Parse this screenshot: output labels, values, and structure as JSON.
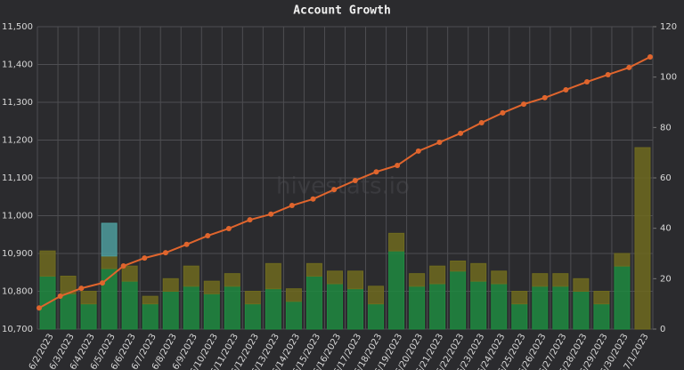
{
  "chart_data": {
    "type": "combo",
    "title": "Account Growth",
    "watermark": "hivestats.io",
    "categories": [
      "6/2/2023",
      "6/3/2023",
      "6/4/2023",
      "6/5/2023",
      "6/6/2023",
      "6/7/2023",
      "6/8/2023",
      "6/9/2023",
      "6/10/2023",
      "6/11/2023",
      "6/12/2023",
      "6/13/2023",
      "6/14/2023",
      "6/15/2023",
      "6/16/2023",
      "6/17/2023",
      "6/18/2023",
      "6/19/2023",
      "6/20/2023",
      "6/21/2023",
      "6/22/2023",
      "6/23/2023",
      "6/24/2023",
      "6/25/2023",
      "6/26/2023",
      "6/27/2023",
      "6/28/2023",
      "6/29/2023",
      "6/30/2023",
      "7/1/2023"
    ],
    "series": [
      {
        "type": "bar",
        "axis": "y2",
        "color": "#1e8a3f",
        "values": [
          21,
          14,
          10,
          24,
          19,
          10,
          15,
          17,
          14,
          17,
          10,
          16,
          11,
          21,
          18,
          16,
          10,
          31,
          17,
          18,
          23,
          19,
          18,
          10,
          17,
          17,
          15,
          10,
          25,
          0
        ]
      },
      {
        "type": "bar",
        "axis": "y2",
        "color": "#6e6a1e",
        "values": [
          10,
          7,
          5,
          5,
          6,
          3,
          5,
          8,
          5,
          5,
          5,
          10,
          5,
          5,
          5,
          7,
          7,
          7,
          5,
          7,
          4,
          7,
          5,
          5,
          5,
          5,
          5,
          5,
          5,
          72
        ]
      },
      {
        "type": "bar",
        "axis": "y2",
        "color": "#4d9c9c",
        "values": [
          0,
          0,
          0,
          13,
          0,
          0,
          0,
          0,
          0,
          0,
          0,
          0,
          0,
          0,
          0,
          0,
          0,
          0,
          0,
          0,
          0,
          0,
          0,
          0,
          0,
          0,
          0,
          0,
          0,
          0
        ]
      },
      {
        "type": "line",
        "axis": "y",
        "color": "#e0652d",
        "values": [
          10756,
          10787,
          10808,
          10822,
          10867,
          10888,
          10902,
          10924,
          10947,
          10966,
          10989,
          11004,
          11027,
          11044,
          11069,
          11093,
          11116,
          11133,
          11171,
          11194,
          11218,
          11246,
          11272,
          11295,
          11312,
          11333,
          11354,
          11373,
          11392,
          11420
        ]
      }
    ],
    "ylim": [
      10700,
      11500
    ],
    "yticks": [
      {
        "value": 10700,
        "label": "10,700"
      },
      {
        "value": 10800,
        "label": "10,800"
      },
      {
        "value": 10900,
        "label": "10,900"
      },
      {
        "value": 11000,
        "label": "11,000"
      },
      {
        "value": 11100,
        "label": "11,100"
      },
      {
        "value": 11200,
        "label": "11,200"
      },
      {
        "value": 11300,
        "label": "11,300"
      },
      {
        "value": 11400,
        "label": "11,400"
      },
      {
        "value": 11500,
        "label": "11,500"
      }
    ],
    "y2lim": [
      0,
      120
    ],
    "y2ticks": [
      0,
      20,
      40,
      60,
      80,
      100,
      120
    ],
    "grid": true
  }
}
